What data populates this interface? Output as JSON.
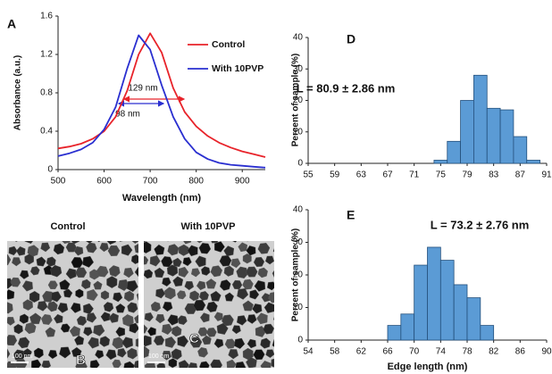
{
  "chart_data": [
    {
      "type": "line",
      "panel": "A",
      "xlabel": "Wavelength (nm)",
      "ylabel": "Absorbance (a.u.)",
      "x": [
        500,
        525,
        550,
        575,
        600,
        625,
        650,
        675,
        700,
        725,
        750,
        775,
        800,
        825,
        850,
        875,
        900,
        925,
        950
      ],
      "series": [
        {
          "name": "Control",
          "color": "#e8232a",
          "values": [
            0.22,
            0.24,
            0.27,
            0.32,
            0.4,
            0.55,
            0.82,
            1.2,
            1.42,
            1.22,
            0.85,
            0.6,
            0.45,
            0.35,
            0.28,
            0.23,
            0.19,
            0.16,
            0.13
          ]
        },
        {
          "name": "With 10PVP",
          "color": "#2a2fd0",
          "values": [
            0.14,
            0.17,
            0.21,
            0.28,
            0.42,
            0.65,
            1.05,
            1.4,
            1.25,
            0.88,
            0.55,
            0.32,
            0.18,
            0.11,
            0.07,
            0.05,
            0.04,
            0.03,
            0.02
          ]
        }
      ],
      "annotations": [
        "129 nm",
        "98 nm"
      ],
      "xlim": [
        500,
        950
      ],
      "xticks": [
        500,
        600,
        700,
        800,
        900
      ],
      "ylim": [
        0,
        1.6
      ],
      "yticks": [
        0,
        0.4,
        0.8,
        1.2,
        1.6
      ],
      "legend": "upper right"
    },
    {
      "type": "histogram",
      "panel": "D",
      "ylabel": "Percent of sample (%)",
      "color": "#5b9bd5",
      "bins": [
        74,
        76,
        78,
        80,
        82,
        84,
        86,
        88,
        90
      ],
      "values": [
        1,
        7,
        20,
        28,
        17.5,
        17,
        8.5,
        1
      ],
      "annotations": [
        "L = 80.9 ± 2.86 nm"
      ],
      "xlim": [
        55,
        91
      ],
      "xticks": [
        55,
        59,
        63,
        67,
        71,
        75,
        79,
        83,
        87,
        91
      ],
      "ylim": [
        0,
        40
      ],
      "yticks": [
        0,
        10,
        20,
        30,
        40
      ]
    },
    {
      "type": "histogram",
      "panel": "E",
      "xlabel": "Edge length (nm)",
      "ylabel": "Percent of sample (%)",
      "color": "#5b9bd5",
      "bins": [
        66,
        68,
        70,
        72,
        74,
        76,
        78,
        80,
        82
      ],
      "values": [
        4.5,
        8,
        23,
        28.5,
        24.5,
        17,
        13,
        4.5
      ],
      "annotations": [
        "L = 73.2 ± 2.76 nm"
      ],
      "xlim": [
        54,
        90
      ],
      "xticks": [
        54,
        58,
        62,
        66,
        70,
        74,
        78,
        82,
        86,
        90
      ],
      "ylim": [
        0,
        40
      ],
      "yticks": [
        0,
        10,
        20,
        30,
        40
      ]
    }
  ],
  "images": [
    {
      "panel": "B",
      "title": "Control",
      "scale_bar": "100 nm"
    },
    {
      "panel": "C",
      "title": "With 10PVP",
      "scale_bar": "100 nm"
    }
  ]
}
